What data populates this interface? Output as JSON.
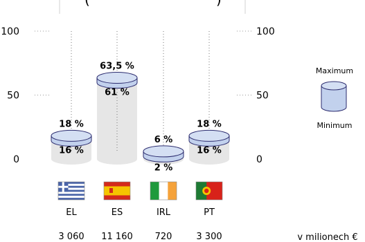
{
  "chart_data": {
    "type": "bar",
    "title": "(",
    "title_right": ")",
    "ylim": [
      0,
      100
    ],
    "y_ticks": [
      0,
      50,
      100
    ],
    "categories": [
      "EL",
      "ES",
      "IRL",
      "PT"
    ],
    "series": [
      {
        "name": "Maximum",
        "values": [
          18,
          63.5,
          6,
          18
        ]
      },
      {
        "name": "Minimum",
        "values": [
          16,
          61,
          2,
          16
        ]
      }
    ],
    "max_labels": [
      "18 %",
      "63,5 %",
      "6 %",
      "18 %"
    ],
    "min_labels": [
      "16 %",
      "61 %",
      "2 %",
      "16 %"
    ],
    "amounts": [
      "3 060",
      "11 160",
      "720",
      "3 300"
    ],
    "unit_note": "v milionech €",
    "legend": {
      "max_label": "Maximum",
      "min_label": "Minimum",
      "position": "right"
    },
    "colors": {
      "cylinder_fill": "#c2d1ed",
      "cylinder_stroke": "#2b2b6e",
      "column_gray": "#e6e6e6",
      "greece_blue": "#4a64a8",
      "spain_red": "#d42a1c",
      "spain_yellow": "#f5c400",
      "ireland_green": "#1e9a3c",
      "ireland_orange": "#f5a23a",
      "portugal_green": "#1e7a34",
      "portugal_red": "#d8221a"
    },
    "flags": [
      "greece-flag-icon",
      "spain-flag-icon",
      "ireland-flag-icon",
      "portugal-flag-icon"
    ]
  }
}
